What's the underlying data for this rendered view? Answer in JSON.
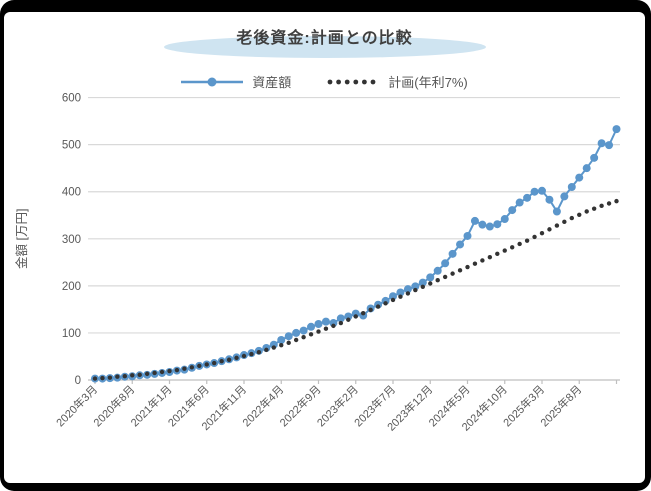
{
  "title": "老後資金:計画との比較",
  "legend": [
    {
      "label": "資産額",
      "color": "#5b96cb",
      "style": "solid-line-with-marker"
    },
    {
      "label": "計画(年利7%)",
      "color": "#333333",
      "style": "dotted"
    }
  ],
  "colors": {
    "accent_blue": "#5b96cb",
    "plan_dot": "#333333",
    "title_ellipse": "#cfe4f1",
    "gridline": "#d9d9d9",
    "axis": "#bfbfbf",
    "tick_text": "#595959",
    "title_text": "#404040"
  },
  "chart_data": {
    "type": "line",
    "title": "老後資金:計画との比較",
    "xlabel": "",
    "ylabel": "金額 [万円]",
    "ylim": [
      0,
      600
    ],
    "yticks": [
      0,
      100,
      200,
      300,
      400,
      500,
      600
    ],
    "grid": true,
    "legend_position": "top-center",
    "x_is_monthly": true,
    "n_points": 71,
    "x_tick_interval_months": 5,
    "x_tick_labels": [
      "2020年3月",
      "2020年8月",
      "2021年1月",
      "2021年6月",
      "2021年11月",
      "2022年4月",
      "2022年9月",
      "2023年2月",
      "2023年7月",
      "2023年12月",
      "2024年5月",
      "2024年10月",
      "2025年3月",
      "2025年8月"
    ],
    "series": [
      {
        "name": "資産額",
        "style": "solid-line-with-marker",
        "color": "#5b96cb",
        "values": [
          3,
          3,
          4,
          5,
          7,
          8,
          10,
          11,
          13,
          15,
          17,
          20,
          22,
          26,
          30,
          33,
          36,
          40,
          44,
          48,
          53,
          57,
          62,
          68,
          75,
          85,
          93,
          100,
          105,
          113,
          119,
          124,
          121,
          131,
          135,
          141,
          137,
          152,
          160,
          168,
          178,
          186,
          193,
          199,
          207,
          218,
          232,
          248,
          268,
          288,
          306,
          338,
          330,
          326,
          331,
          342,
          361,
          377,
          387,
          400,
          402,
          383,
          358,
          390,
          410,
          430,
          450,
          472,
          503,
          499,
          533
        ]
      },
      {
        "name": "計画(年利7%)",
        "style": "dotted",
        "color": "#333333",
        "values": [
          3,
          4,
          5,
          7,
          8,
          10,
          11,
          13,
          15,
          17,
          19,
          21,
          24,
          27,
          30,
          33,
          36,
          40,
          43,
          47,
          51,
          55,
          59,
          64,
          69,
          74,
          79,
          85,
          91,
          97,
          103,
          109,
          115,
          121,
          128,
          135,
          142,
          149,
          156,
          163,
          170,
          177,
          184,
          191,
          198,
          205,
          212,
          219,
          226,
          233,
          240,
          247,
          254,
          261,
          268,
          275,
          282,
          289,
          296,
          304,
          312,
          320,
          328,
          336,
          344,
          351,
          358,
          364,
          370,
          375,
          380
        ]
      }
    ]
  }
}
